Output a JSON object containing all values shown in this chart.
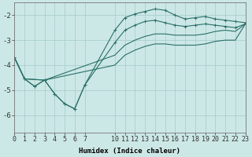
{
  "background_color": "#cce8e6",
  "grid_color": "#aacfcc",
  "line_color": "#2a7068",
  "xlabel": "Humidex (Indice chaleur)",
  "xlim": [
    0,
    23
  ],
  "ylim": [
    -6.7,
    -1.5
  ],
  "xticks": [
    0,
    1,
    2,
    3,
    4,
    5,
    6,
    7,
    10,
    11,
    12,
    13,
    14,
    15,
    16,
    17,
    18,
    19,
    20,
    21,
    22,
    23
  ],
  "yticks": [
    -6,
    -5,
    -4,
    -3,
    -2
  ],
  "lines": [
    {
      "x": [
        0,
        1,
        2,
        3,
        4,
        5,
        6,
        7,
        10,
        11,
        12,
        13,
        14,
        15,
        16,
        17,
        18,
        19,
        20,
        21,
        22,
        23
      ],
      "y": [
        -3.7,
        -4.55,
        -4.85,
        -4.6,
        -5.15,
        -5.55,
        -5.75,
        -4.8,
        -2.6,
        -2.1,
        -1.95,
        -1.85,
        -1.75,
        -1.8,
        -2.0,
        -2.15,
        -2.1,
        -2.05,
        -2.15,
        -2.2,
        -2.25,
        -2.3
      ],
      "marker": "+"
    },
    {
      "x": [
        0,
        1,
        2,
        3,
        4,
        5,
        6,
        7,
        10,
        11,
        12,
        13,
        14,
        15,
        16,
        17,
        18,
        19,
        20,
        21,
        22,
        23
      ],
      "y": [
        -3.7,
        -4.55,
        -4.85,
        -4.6,
        -5.15,
        -5.55,
        -5.75,
        -4.8,
        -3.1,
        -2.6,
        -2.4,
        -2.25,
        -2.2,
        -2.3,
        -2.4,
        -2.45,
        -2.4,
        -2.35,
        -2.4,
        -2.45,
        -2.5,
        -2.35
      ],
      "marker": "+"
    },
    {
      "x": [
        0,
        1,
        3,
        10,
        11,
        12,
        13,
        14,
        15,
        16,
        17,
        18,
        19,
        20,
        21,
        22,
        23
      ],
      "y": [
        -3.7,
        -4.55,
        -4.6,
        -3.6,
        -3.2,
        -3.0,
        -2.85,
        -2.75,
        -2.75,
        -2.8,
        -2.8,
        -2.8,
        -2.75,
        -2.65,
        -2.6,
        -2.65,
        -2.35
      ],
      "marker": null
    },
    {
      "x": [
        0,
        1,
        3,
        10,
        11,
        12,
        13,
        14,
        15,
        16,
        17,
        18,
        19,
        20,
        21,
        22,
        23
      ],
      "y": [
        -3.7,
        -4.55,
        -4.6,
        -4.0,
        -3.6,
        -3.4,
        -3.25,
        -3.15,
        -3.15,
        -3.2,
        -3.2,
        -3.2,
        -3.15,
        -3.05,
        -3.0,
        -3.0,
        -2.35
      ],
      "marker": null
    }
  ],
  "tick_fontsize": 6,
  "xlabel_fontsize": 6.5,
  "figsize": [
    3.2,
    2.0
  ],
  "dpi": 100
}
